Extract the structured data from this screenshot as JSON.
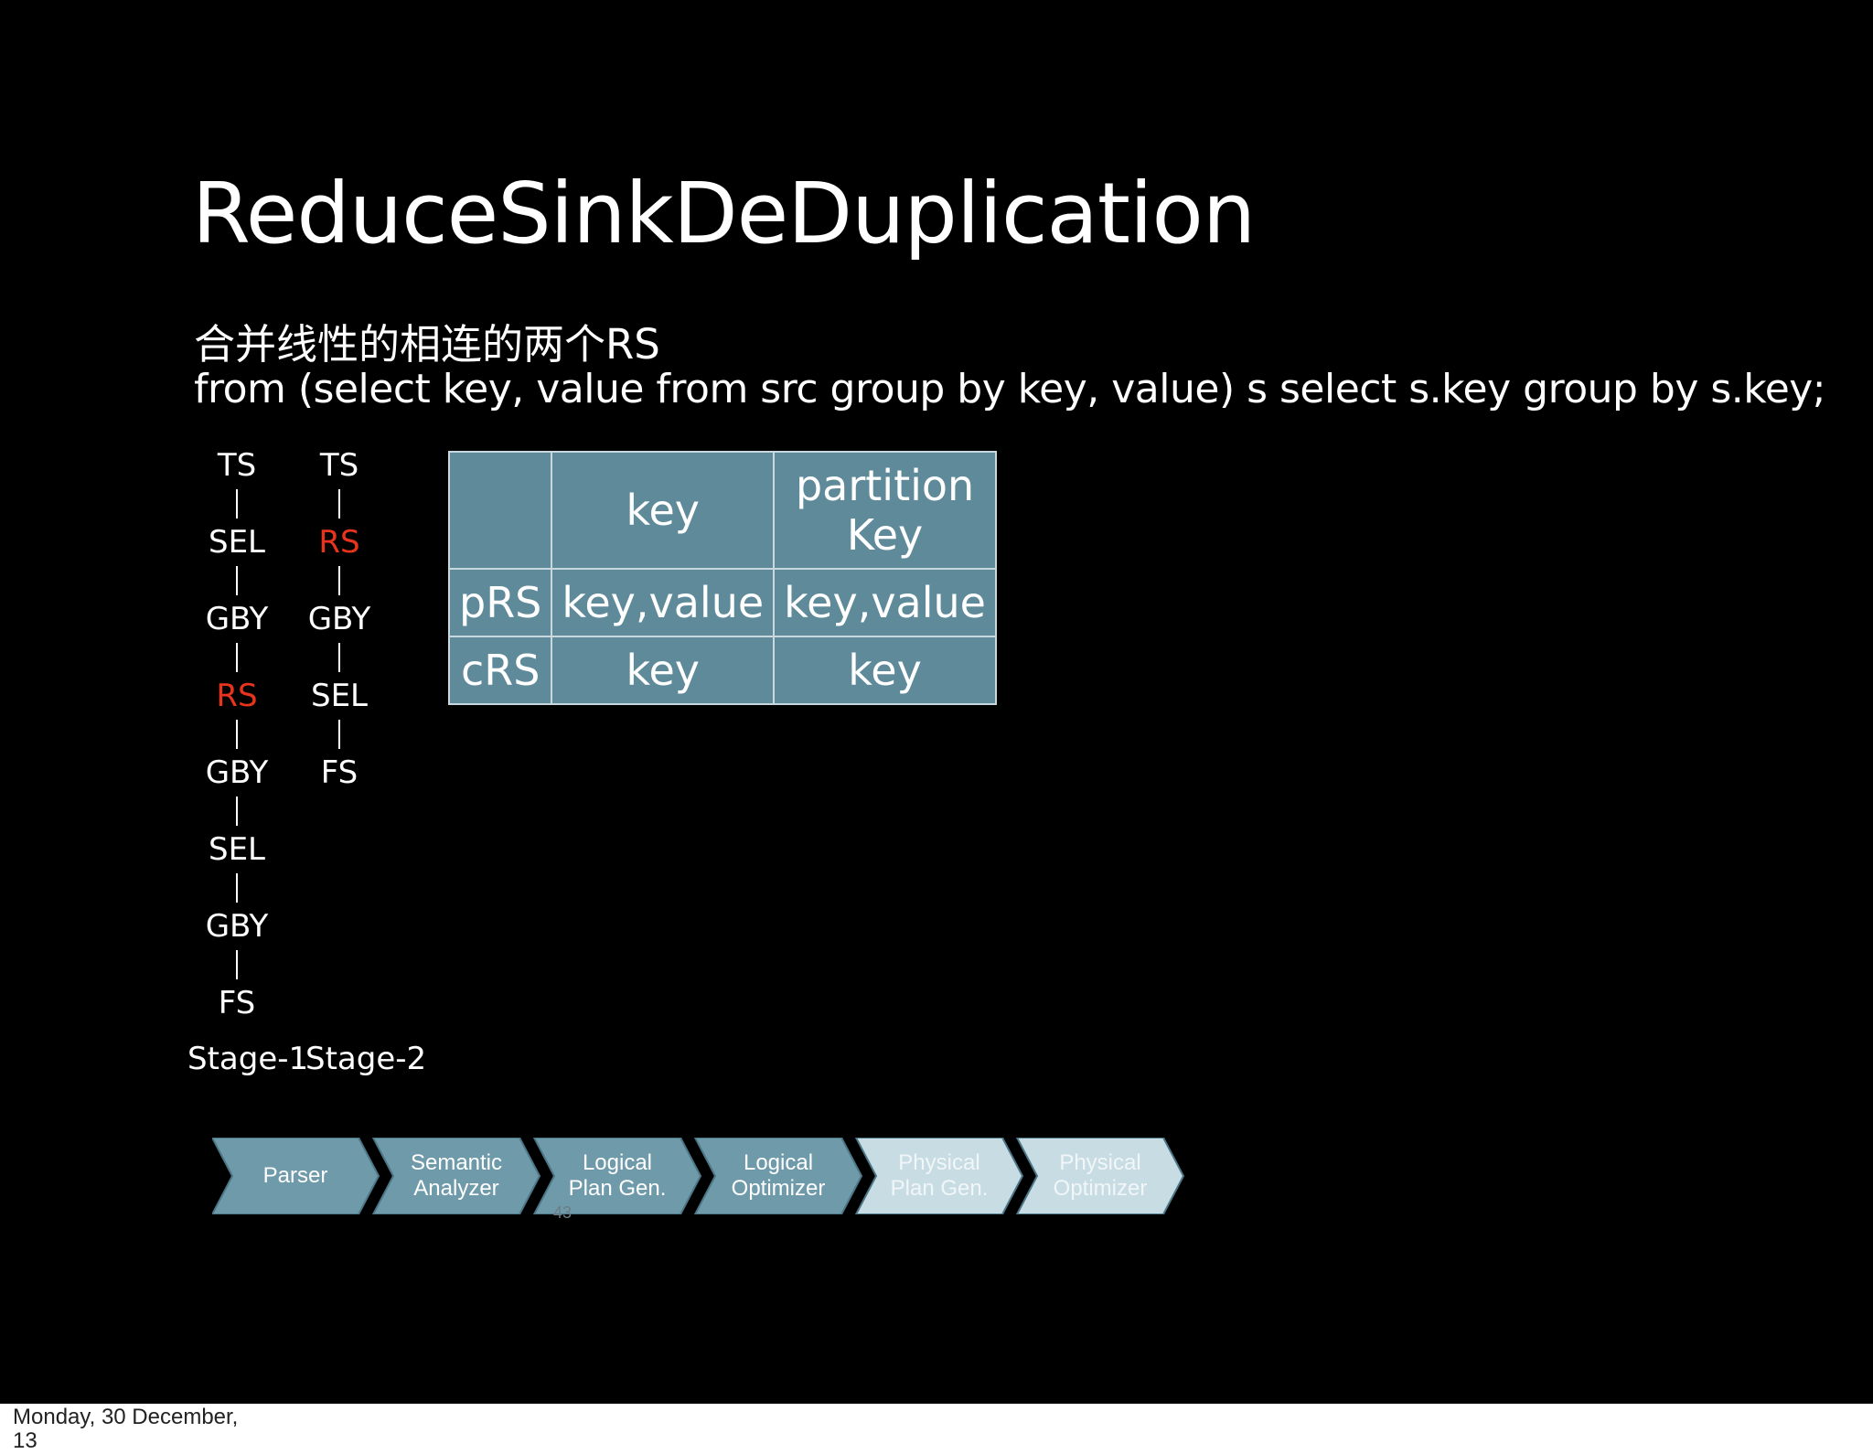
{
  "slide": {
    "title": "ReduceSinkDeDuplication",
    "subtitle": "合并线性的相连的两个RS",
    "query": "from (select key, value from src group by key, value) s select s.key group by s.key;",
    "stage1": {
      "label": "Stage-1",
      "nodes": [
        "TS",
        "SEL",
        "GBY",
        "RS",
        "GBY",
        "SEL",
        "GBY",
        "FS"
      ]
    },
    "stage2": {
      "label": "Stage-2",
      "nodes": [
        "TS",
        "RS",
        "GBY",
        "SEL",
        "FS"
      ]
    },
    "highlight_color": "#e8341c",
    "table": {
      "headers": [
        "",
        "key",
        "partition Key"
      ],
      "rows": [
        [
          "pRS",
          "key,value",
          "key,value"
        ],
        [
          "cRS",
          "key",
          "key"
        ]
      ]
    },
    "pipeline": {
      "steps": [
        {
          "line1": "Parser",
          "line2": "",
          "state": "active"
        },
        {
          "line1": "Semantic",
          "line2": "Analyzer",
          "state": "active"
        },
        {
          "line1": "Logical",
          "line2": "Plan Gen.",
          "state": "active"
        },
        {
          "line1": "Logical",
          "line2": "Optimizer",
          "state": "active"
        },
        {
          "line1": "Physical",
          "line2": "Plan Gen.",
          "state": "faded"
        },
        {
          "line1": "Physical",
          "line2": "Optimizer",
          "state": "faded"
        }
      ],
      "active_color": "#6f9aaa",
      "faded_color": "#c8dce4"
    },
    "page_number": "43"
  },
  "footer": {
    "date": "Monday, 30 December,",
    "year_fragment": "13"
  }
}
